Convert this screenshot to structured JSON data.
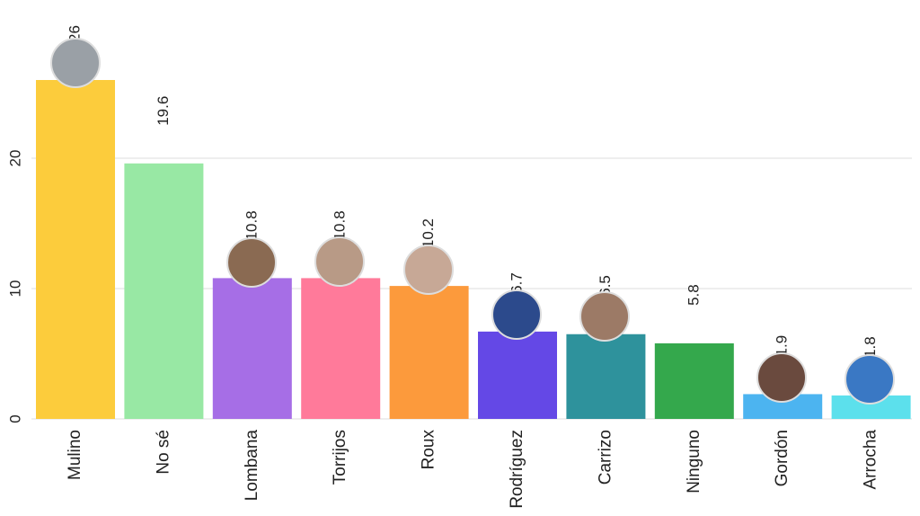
{
  "chart_data": {
    "type": "bar",
    "categories": [
      "Mulino",
      "No sé",
      "Lombana",
      "Torrijos",
      "Roux",
      "Rodríguez",
      "Carrizo",
      "Ninguno",
      "Gordón",
      "Arrocha"
    ],
    "values": [
      26,
      19.6,
      10.8,
      10.8,
      10.2,
      6.7,
      6.5,
      5.8,
      1.9,
      1.8
    ],
    "colors": [
      "#fccc3c",
      "#98e8a4",
      "#a66ee6",
      "#ff7a9a",
      "#fc9a3c",
      "#6448e6",
      "#2e929c",
      "#34a84c",
      "#4cb4f0",
      "#5ce0ec"
    ],
    "ylim": [
      0,
      30
    ],
    "yticks": [
      0,
      10,
      20
    ],
    "grid": true
  }
}
